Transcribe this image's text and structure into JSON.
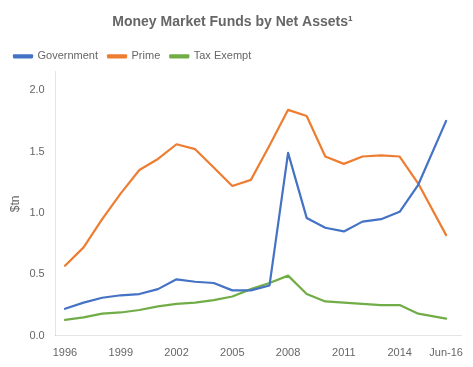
{
  "chart_data": {
    "type": "line",
    "title": "Money Market Funds by Net Assets¹",
    "ylabel": "$tn",
    "x": [
      1996,
      1997,
      1998,
      1999,
      2000,
      2001,
      2002,
      2003,
      2004,
      2005,
      2006,
      2007,
      2008,
      2009,
      2010,
      2011,
      2012,
      2013,
      2014,
      2015,
      2016.5
    ],
    "series": [
      {
        "name": "Government",
        "color": "#4472c4",
        "values": [
          0.22,
          0.27,
          0.31,
          0.33,
          0.34,
          0.38,
          0.46,
          0.44,
          0.43,
          0.37,
          0.37,
          0.41,
          1.49,
          0.96,
          0.88,
          0.85,
          0.93,
          0.95,
          1.01,
          1.23,
          1.75
        ]
      },
      {
        "name": "Prime",
        "color": "#ed7d31",
        "values": [
          0.57,
          0.72,
          0.95,
          1.16,
          1.35,
          1.44,
          1.56,
          1.52,
          1.37,
          1.22,
          1.27,
          1.55,
          1.84,
          1.79,
          1.46,
          1.4,
          1.46,
          1.47,
          1.46,
          1.24,
          0.82
        ]
      },
      {
        "name": "Tax Exempt",
        "color": "#70ad47",
        "values": [
          0.13,
          0.15,
          0.18,
          0.19,
          0.21,
          0.24,
          0.26,
          0.27,
          0.29,
          0.32,
          0.38,
          0.43,
          0.49,
          0.34,
          0.28,
          0.27,
          0.26,
          0.25,
          0.25,
          0.18,
          0.14
        ]
      }
    ],
    "xlim": [
      1995.5,
      2017.3
    ],
    "xticks": [
      1996,
      1999,
      2002,
      2005,
      2008,
      2011,
      2014,
      {
        "value": 2016.5,
        "label": "Jun-16"
      }
    ],
    "ylim": [
      0.0,
      2.15
    ],
    "yticks": [
      {
        "value": 0,
        "label": "0.0"
      },
      0.5,
      {
        "value": 1,
        "label": "1.0"
      },
      1.5,
      {
        "value": 2,
        "label": "2.0"
      }
    ],
    "grid": false,
    "legend": "upper left"
  }
}
